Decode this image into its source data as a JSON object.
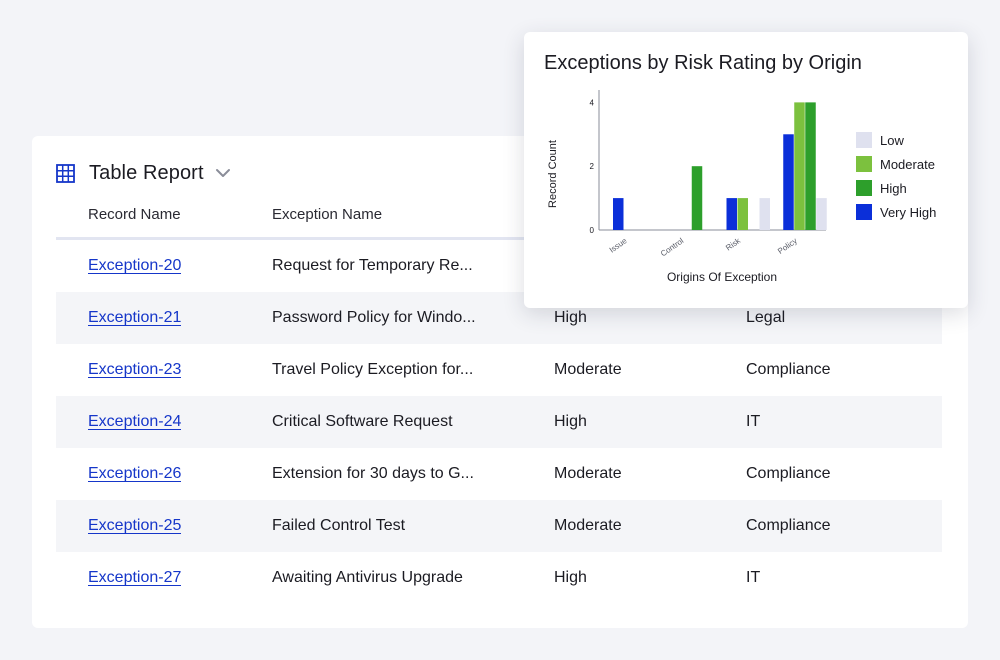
{
  "report": {
    "title": "Table Report",
    "columns": [
      "Record Name",
      "Exception Name"
    ],
    "rows": [
      {
        "record": "Exception-20",
        "exception": "Request for Temporary Re...",
        "rating": "",
        "origin": ""
      },
      {
        "record": "Exception-21",
        "exception": "Password Policy for Windo...",
        "rating": "High",
        "origin": "Legal"
      },
      {
        "record": "Exception-23",
        "exception": "Travel Policy Exception for...",
        "rating": "Moderate",
        "origin": "Compliance"
      },
      {
        "record": "Exception-24",
        "exception": "Critical Software Request",
        "rating": "High",
        "origin": "IT"
      },
      {
        "record": "Exception-26",
        "exception": "Extension for 30 days to G...",
        "rating": "Moderate",
        "origin": "Compliance"
      },
      {
        "record": "Exception-25",
        "exception": "Failed Control Test",
        "rating": "Moderate",
        "origin": "Compliance"
      },
      {
        "record": "Exception-27",
        "exception": "Awaiting Antivirus Upgrade",
        "rating": "High",
        "origin": "IT"
      }
    ]
  },
  "icons": {
    "report": "grid-table-icon",
    "dropdown": "chevron-down-icon"
  },
  "colors": {
    "accent": "#1536c9",
    "low": "#dfe1ef",
    "moderate": "#7cc13e",
    "high": "#2d9f2b",
    "very_high": "#0b2fd9"
  },
  "chart_data": {
    "type": "bar",
    "title": "Exceptions by Risk Rating by Origin",
    "xlabel": "Origins Of Exception",
    "ylabel": "Record Count",
    "categories": [
      "Issue",
      "Control",
      "Risk",
      "Policy"
    ],
    "yticks": [
      0,
      2,
      4
    ],
    "ylim": [
      0,
      4.2
    ],
    "series": [
      {
        "name": "Very High",
        "values": [
          1,
          0,
          1,
          3
        ]
      },
      {
        "name": "Moderate",
        "values": [
          0,
          0,
          1,
          4
        ]
      },
      {
        "name": "High",
        "values": [
          0,
          2,
          0,
          4
        ]
      },
      {
        "name": "Low",
        "values": [
          0,
          0,
          1,
          1
        ]
      }
    ],
    "legend": [
      "Low",
      "Moderate",
      "High",
      "Very High"
    ],
    "legend_position": "right",
    "grid": false
  }
}
